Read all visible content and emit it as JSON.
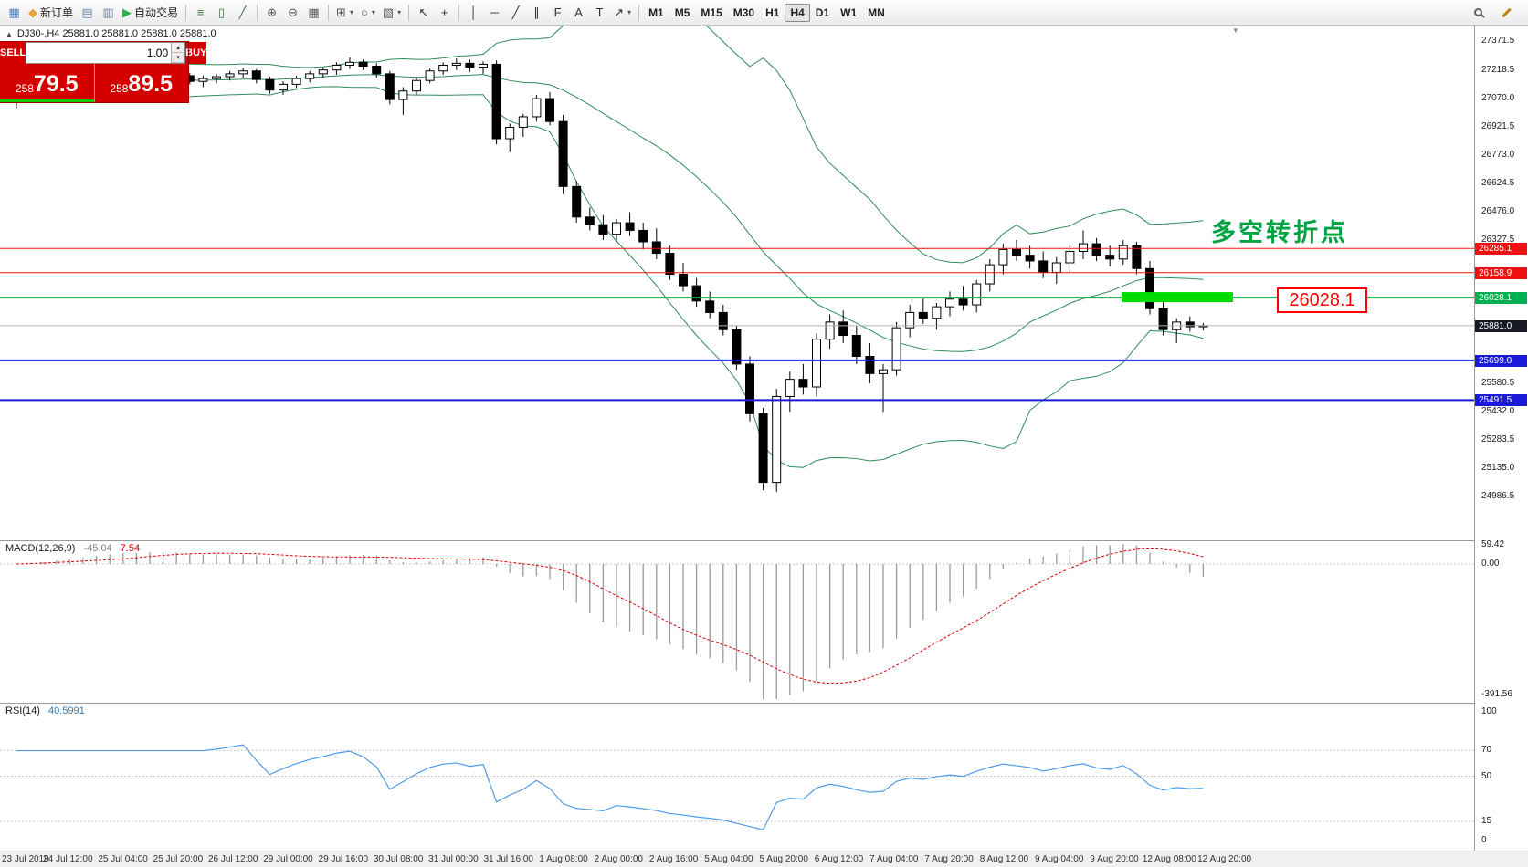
{
  "colors": {
    "bollinger": "#2E8B57",
    "rsi_line": "#4f9be8",
    "macd_histogram": "#9a9a9a",
    "macd_signal": "#dd0000",
    "candle_up": "#ffffff",
    "candle_down": "#000000",
    "candle_border": "#000000",
    "panel_red": "#d40000",
    "highlight_green": "#00dc00",
    "current_price_line": "#b0b0b0",
    "spread_bar": "#00cc00"
  },
  "toolbar": {
    "active_timeframe": "H4",
    "groups": [
      {
        "items": [
          {
            "name": "terminal-icon",
            "glyph": "▦",
            "color": "#4a7ebb"
          },
          {
            "name": "new-order-button",
            "glyph": "◆",
            "color": "#e8a33d",
            "label": "新订单"
          },
          {
            "name": "market-watch-icon",
            "glyph": "▤",
            "color": "#6c87a8"
          },
          {
            "name": "navigator-icon",
            "glyph": "▥",
            "color": "#6c87a8"
          },
          {
            "name": "auto-trading-button",
            "glyph": "▶",
            "color": "#2fae48",
            "label": "自动交易"
          }
        ]
      },
      {
        "items": [
          {
            "name": "bar-chart-icon",
            "glyph": "≡",
            "color": "#3f6f3f"
          },
          {
            "name": "candlestick-chart-icon",
            "glyph": "▯",
            "color": "#3f6f3f"
          },
          {
            "name": "line-chart-icon",
            "glyph": "╱",
            "color": "#3f6f3f"
          }
        ]
      },
      {
        "items": [
          {
            "name": "zoom-in-icon",
            "glyph": "⊕",
            "color": "#555555"
          },
          {
            "name": "zoom-out-icon",
            "glyph": "⊖",
            "color": "#555555"
          },
          {
            "name": "tile-windows-icon",
            "glyph": "▦",
            "color": "#555555"
          }
        ]
      },
      {
        "items": [
          {
            "name": "new-chart-icon",
            "glyph": "⊞",
            "color": "#555555",
            "caret": true
          },
          {
            "name": "profiles-icon",
            "glyph": "○",
            "color": "#555555",
            "caret": true
          },
          {
            "name": "templates-icon",
            "glyph": "▧",
            "color": "#555555",
            "caret": true
          }
        ]
      },
      {
        "items": [
          {
            "name": "cursor-icon",
            "glyph": "↖",
            "color": "#333333"
          },
          {
            "name": "crosshair-icon",
            "glyph": "+",
            "color": "#333333"
          }
        ]
      },
      {
        "items": [
          {
            "name": "vertical-line-icon",
            "glyph": "│",
            "color": "#333333"
          },
          {
            "name": "horizontal-line-icon",
            "glyph": "─",
            "color": "#333333"
          },
          {
            "name": "trendline-icon",
            "glyph": "╱",
            "color": "#333333"
          },
          {
            "name": "channel-icon",
            "glyph": "∥",
            "color": "#333333"
          },
          {
            "name": "fibonacci-icon",
            "glyph": "F",
            "color": "#333333"
          },
          {
            "name": "text-icon",
            "glyph": "A",
            "color": "#333333"
          },
          {
            "name": "label-icon",
            "glyph": "T",
            "color": "#333333"
          },
          {
            "name": "arrows-icon",
            "glyph": "↗",
            "color": "#333333",
            "caret": true
          }
        ]
      },
      {
        "items": [
          {
            "name": "tf-m1-button",
            "label": "M1",
            "tf": true
          },
          {
            "name": "tf-m5-button",
            "label": "M5",
            "tf": true
          },
          {
            "name": "tf-m15-button",
            "label": "M15",
            "tf": true
          },
          {
            "name": "tf-m30-button",
            "label": "M30",
            "tf": true
          },
          {
            "name": "tf-h1-button",
            "label": "H1",
            "tf": true
          },
          {
            "name": "tf-h4-button",
            "label": "H4",
            "tf": true
          },
          {
            "name": "tf-d1-button",
            "label": "D1",
            "tf": true
          },
          {
            "name": "tf-w1-button",
            "label": "W1",
            "tf": true
          },
          {
            "name": "tf-mn-button",
            "label": "MN",
            "tf": true
          }
        ]
      }
    ],
    "right_items": [
      {
        "name": "quick-search-icon",
        "type": "magnifier"
      },
      {
        "name": "compose-icon",
        "type": "pencil"
      }
    ]
  },
  "trade_panel": {
    "sell_label": "SELL",
    "buy_label": "BUY",
    "volume": "1.00",
    "spin_up": "▴",
    "spin_down": "▾",
    "sell_price_base": "258",
    "sell_price_big": "79.5",
    "buy_price_base": "258",
    "buy_price_big": "89.5"
  },
  "chart_data": {
    "type": "candlestick",
    "symbol": "DJ30-",
    "timeframe": "H4",
    "ohlc_line": {
      "toggle_icon": "▲",
      "text": "DJ30-,H4 25881.0 25881.0 25881.0 25881.0"
    },
    "price_range": [
      24986.5,
      27371.5
    ],
    "bollinger": {
      "period": 20,
      "deviation": 2
    },
    "candles": [
      [
        27050,
        27080,
        27020,
        27070
      ],
      [
        27070,
        27110,
        27050,
        27100
      ],
      [
        27100,
        27130,
        27080,
        27120
      ],
      [
        27120,
        27150,
        27100,
        27140
      ],
      [
        27140,
        27165,
        27110,
        27155
      ],
      [
        27155,
        27185,
        27130,
        27175
      ],
      [
        27175,
        27205,
        27155,
        27195
      ],
      [
        27195,
        27225,
        27170,
        27210
      ],
      [
        27210,
        27230,
        27180,
        27200
      ],
      [
        27200,
        27220,
        27160,
        27185
      ],
      [
        27185,
        27230,
        27170,
        27215
      ],
      [
        27215,
        27245,
        27185,
        27205
      ],
      [
        27210,
        27235,
        27175,
        27190
      ],
      [
        27190,
        27205,
        27145,
        27160
      ],
      [
        27160,
        27190,
        27130,
        27175
      ],
      [
        27175,
        27200,
        27150,
        27185
      ],
      [
        27185,
        27215,
        27165,
        27200
      ],
      [
        27200,
        27230,
        27180,
        27215
      ],
      [
        27215,
        27225,
        27150,
        27170
      ],
      [
        27170,
        27185,
        27095,
        27115
      ],
      [
        27115,
        27160,
        27090,
        27145
      ],
      [
        27145,
        27190,
        27125,
        27175
      ],
      [
        27175,
        27215,
        27155,
        27200
      ],
      [
        27200,
        27235,
        27180,
        27220
      ],
      [
        27220,
        27260,
        27195,
        27245
      ],
      [
        27245,
        27285,
        27225,
        27260
      ],
      [
        27260,
        27275,
        27220,
        27240
      ],
      [
        27240,
        27255,
        27180,
        27200
      ],
      [
        27200,
        27215,
        27040,
        27065
      ],
      [
        27065,
        27130,
        26985,
        27110
      ],
      [
        27110,
        27180,
        27090,
        27165
      ],
      [
        27165,
        27230,
        27150,
        27215
      ],
      [
        27215,
        27260,
        27195,
        27245
      ],
      [
        27245,
        27280,
        27220,
        27255
      ],
      [
        27255,
        27275,
        27210,
        27235
      ],
      [
        27235,
        27265,
        27200,
        27250
      ],
      [
        27250,
        27270,
        26830,
        26860
      ],
      [
        26860,
        26940,
        26790,
        26920
      ],
      [
        26920,
        26990,
        26870,
        26975
      ],
      [
        26975,
        27090,
        26950,
        27070
      ],
      [
        27070,
        27105,
        26930,
        26950
      ],
      [
        26950,
        26985,
        26570,
        26610
      ],
      [
        26610,
        26640,
        26420,
        26450
      ],
      [
        26450,
        26500,
        26380,
        26410
      ],
      [
        26410,
        26460,
        26330,
        26360
      ],
      [
        26360,
        26440,
        26320,
        26420
      ],
      [
        26420,
        26475,
        26350,
        26380
      ],
      [
        26380,
        26420,
        26280,
        26320
      ],
      [
        26320,
        26390,
        26230,
        26260
      ],
      [
        26260,
        26300,
        26120,
        26150
      ],
      [
        26150,
        26210,
        26060,
        26090
      ],
      [
        26090,
        26130,
        25980,
        26010
      ],
      [
        26010,
        26060,
        25920,
        25950
      ],
      [
        25950,
        25990,
        25830,
        25860
      ],
      [
        25860,
        25880,
        25650,
        25680
      ],
      [
        25680,
        25720,
        25380,
        25420
      ],
      [
        25420,
        25450,
        25020,
        25060
      ],
      [
        25060,
        25550,
        25010,
        25510
      ],
      [
        25510,
        25640,
        25430,
        25600
      ],
      [
        25600,
        25680,
        25520,
        25560
      ],
      [
        25560,
        25840,
        25510,
        25810
      ],
      [
        25810,
        25940,
        25760,
        25900
      ],
      [
        25900,
        25960,
        25790,
        25830
      ],
      [
        25830,
        25880,
        25680,
        25720
      ],
      [
        25720,
        25790,
        25580,
        25630
      ],
      [
        25630,
        25680,
        25430,
        25650
      ],
      [
        25650,
        25900,
        25620,
        25870
      ],
      [
        25870,
        25990,
        25820,
        25950
      ],
      [
        25950,
        26030,
        25890,
        25920
      ],
      [
        25920,
        26000,
        25860,
        25980
      ],
      [
        25980,
        26060,
        25930,
        26020
      ],
      [
        26020,
        26090,
        25960,
        25990
      ],
      [
        25990,
        26120,
        25950,
        26100
      ],
      [
        26100,
        26230,
        26060,
        26200
      ],
      [
        26200,
        26310,
        26150,
        26280
      ],
      [
        26280,
        26330,
        26220,
        26250
      ],
      [
        26250,
        26300,
        26180,
        26220
      ],
      [
        26220,
        26270,
        26130,
        26160
      ],
      [
        26160,
        26240,
        26100,
        26210
      ],
      [
        26210,
        26300,
        26160,
        26270
      ],
      [
        26270,
        26380,
        26230,
        26310
      ],
      [
        26310,
        26340,
        26220,
        26250
      ],
      [
        26250,
        26300,
        26190,
        26230
      ],
      [
        26230,
        26330,
        26200,
        26300
      ],
      [
        26300,
        26320,
        26150,
        26180
      ],
      [
        26180,
        26220,
        25940,
        25970
      ],
      [
        25970,
        26010,
        25830,
        25860
      ],
      [
        25860,
        25920,
        25790,
        25900
      ],
      [
        25900,
        25930,
        25850,
        25875
      ],
      [
        25875,
        25895,
        25855,
        25881
      ]
    ],
    "price_axis_labels": [
      "27371.5",
      "27218.5",
      "27070.0",
      "26921.5",
      "26773.0",
      "26624.5",
      "26476.0",
      "26327.5",
      "25580.5",
      "25432.0",
      "25283.5",
      "25135.0",
      "24986.5"
    ],
    "price_tags": [
      {
        "price": 26285.1,
        "label": "26285.1",
        "color": "#ee1111"
      },
      {
        "price": 26158.9,
        "label": "26158.9",
        "color": "#ee1111"
      },
      {
        "price": 26028.1,
        "label": "26028.1",
        "color": "#00b050"
      },
      {
        "price": 25881.0,
        "label": "25881.0",
        "color": "#171a26",
        "current": true
      },
      {
        "price": 25699.0,
        "label": "25699.0",
        "color": "#1a1ad9"
      },
      {
        "price": 25491.5,
        "label": "25491.5",
        "color": "#1a1ad9"
      }
    ],
    "hlines": [
      {
        "price": 26285.1,
        "color": "#ee1111",
        "w": 1
      },
      {
        "price": 26158.9,
        "color": "#ee1111",
        "w": 1
      },
      {
        "price": 26028.1,
        "color": "#00b050",
        "w": 2
      },
      {
        "price": 25699.0,
        "color": "#1a1ad9",
        "w": 2
      },
      {
        "price": 25491.5,
        "color": "#1a1ad9",
        "w": 2
      }
    ],
    "current_price": 25881.0,
    "time_axis_labels": [
      "23 Jul 2019",
      "24 Jul 12:00",
      "25 Jul 04:00",
      "25 Jul 20:00",
      "26 Jul 12:00",
      "29 Jul 00:00",
      "29 Jul 16:00",
      "30 Jul 08:00",
      "31 Jul 00:00",
      "31 Jul 16:00",
      "1 Aug 08:00",
      "2 Aug 00:00",
      "2 Aug 16:00",
      "5 Aug 04:00",
      "5 Aug 20:00",
      "6 Aug 12:00",
      "7 Aug 04:00",
      "7 Aug 20:00",
      "8 Aug 12:00",
      "9 Aug 04:00",
      "9 Aug 20:00",
      "12 Aug 08:00",
      "12 Aug 20:00"
    ],
    "macd": {
      "label": "MACD(12,26,9)",
      "value_main": "-45.04",
      "value_signal": "7.54",
      "scale": [
        {
          "v": 59.42,
          "label": "59.42"
        },
        {
          "v": 0,
          "label": "0.00"
        },
        {
          "v": -391.56,
          "label": "-391.56"
        }
      ]
    },
    "rsi": {
      "label": "RSI(14)",
      "value": "40.5991",
      "scale": [
        {
          "v": 100,
          "label": "100"
        },
        {
          "v": 70,
          "label": "70"
        },
        {
          "v": 50,
          "label": "50"
        },
        {
          "v": 15,
          "label": "15"
        },
        {
          "v": 0,
          "label": "0"
        }
      ],
      "levels": [
        70,
        50,
        15
      ]
    },
    "annotations": {
      "turning_point": "多空转折点",
      "callout": "26028.1",
      "highlight_price": 26028.1,
      "highlight_color": "#00dc00",
      "shift_marker": "▼"
    }
  }
}
